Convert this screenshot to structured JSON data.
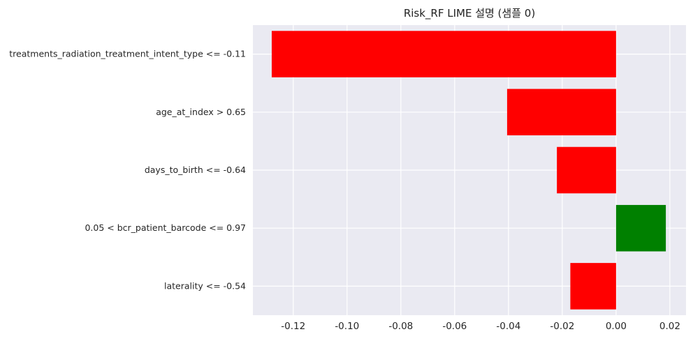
{
  "chart_data": {
    "type": "bar",
    "orientation": "horizontal",
    "title": "Risk_RF LIME 설명 (샘플 0)",
    "xlabel": "",
    "ylabel": "",
    "categories": [
      "treatments_radiation_treatment_intent_type <= -0.11",
      "age_at_index > 0.65",
      "days_to_birth <= -0.64",
      "0.05 < bcr_patient_barcode <= 0.97",
      "laterality <= -0.54"
    ],
    "values": [
      -0.128,
      -0.0405,
      -0.022,
      0.0185,
      -0.017
    ],
    "bar_colors": [
      "#ff0000",
      "#ff0000",
      "#ff0000",
      "#008000",
      "#ff0000"
    ],
    "xlim": [
      -0.135,
      0.026
    ],
    "xticks": [
      -0.12,
      -0.1,
      -0.08,
      -0.06,
      -0.04,
      -0.02,
      0.0,
      0.02
    ],
    "xtick_labels": [
      "-0.12",
      "-0.10",
      "-0.08",
      "-0.06",
      "-0.04",
      "-0.02",
      "0.00",
      "0.02"
    ],
    "grid": true,
    "legend": "none",
    "colors": {
      "background": "#eaeaf2",
      "grid": "#ffffff",
      "negative": "#ff0000",
      "positive": "#008000"
    }
  }
}
